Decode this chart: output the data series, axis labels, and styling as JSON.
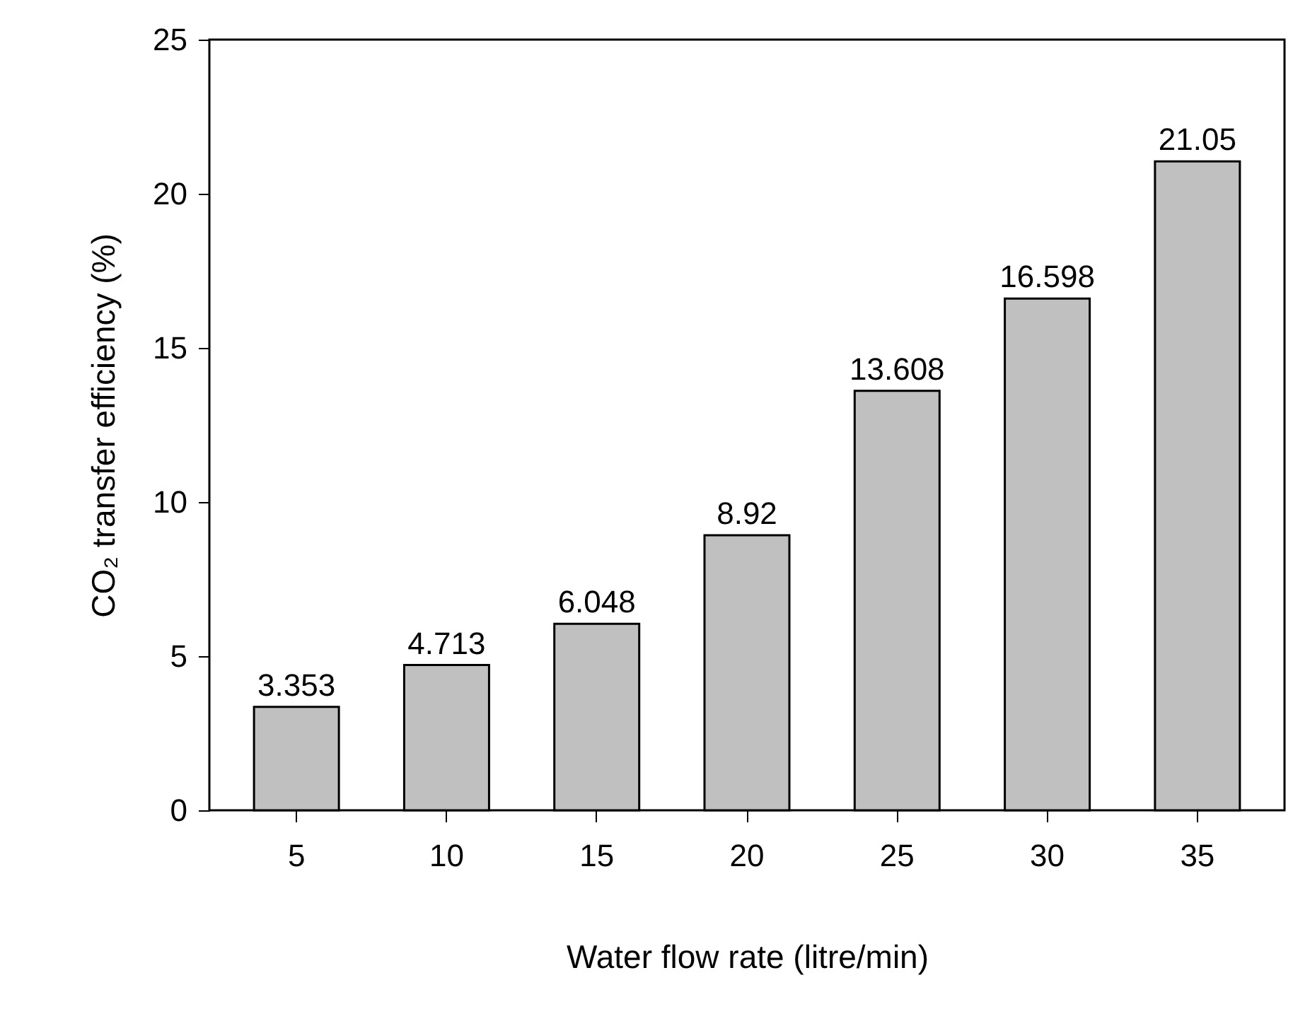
{
  "chart_data": {
    "type": "bar",
    "xlabel": "Water flow rate (litre/min)",
    "ylabel": "CO₂ transfer efficiency (%)",
    "categories": [
      "5",
      "10",
      "15",
      "20",
      "25",
      "30",
      "35"
    ],
    "values": [
      3.353,
      4.713,
      6.048,
      8.92,
      13.608,
      16.598,
      21.05
    ],
    "color": "#c0c0c0",
    "ylim": [
      0,
      25
    ],
    "yticks": [
      0,
      5,
      10,
      15,
      20,
      25
    ],
    "grid": false,
    "data_labels": true
  }
}
